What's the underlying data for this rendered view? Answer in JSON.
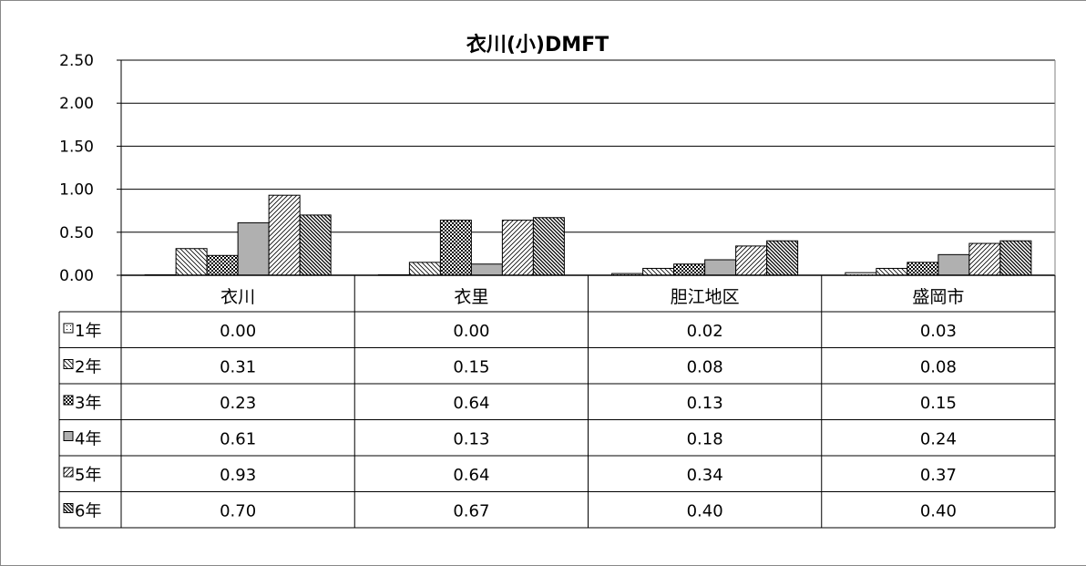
{
  "chart_data": {
    "type": "bar",
    "title": "衣川(小)DMFT",
    "categories": [
      "衣川",
      "衣里",
      "胆江地区",
      "盛岡市"
    ],
    "series": [
      {
        "name": "1年",
        "pattern": "dots",
        "values": [
          0.0,
          0.0,
          0.02,
          0.03
        ]
      },
      {
        "name": "2年",
        "pattern": "diag-back",
        "values": [
          0.31,
          0.15,
          0.08,
          0.08
        ]
      },
      {
        "name": "3年",
        "pattern": "checker",
        "values": [
          0.23,
          0.64,
          0.13,
          0.15
        ]
      },
      {
        "name": "4年",
        "pattern": "solid-gray",
        "values": [
          0.61,
          0.13,
          0.18,
          0.24
        ]
      },
      {
        "name": "5年",
        "pattern": "diag-fwd",
        "values": [
          0.93,
          0.64,
          0.34,
          0.37
        ]
      },
      {
        "name": "6年",
        "pattern": "diag-back-dense",
        "values": [
          0.7,
          0.67,
          0.4,
          0.4
        ]
      }
    ],
    "ylim": [
      0,
      2.5
    ],
    "yticks": [
      "0.00",
      "0.50",
      "1.00",
      "1.50",
      "2.00",
      "2.50"
    ],
    "grid": true,
    "legend": "data-table"
  }
}
